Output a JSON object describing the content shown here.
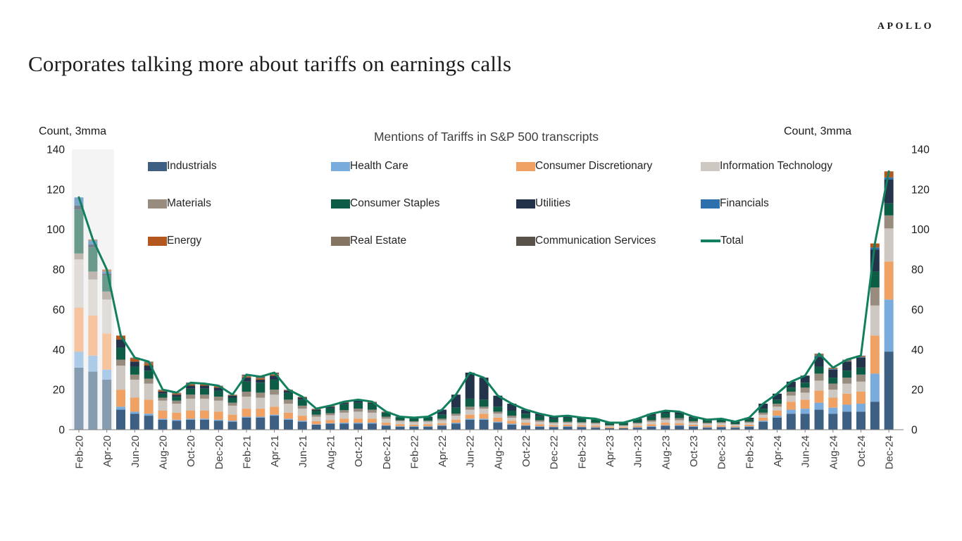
{
  "page": {
    "brand": "APOLLO",
    "title": "Corporates talking more about tariffs on earnings calls"
  },
  "chart": {
    "title": "Mentions of Tariffs in S&P 500 transcripts",
    "left_axis_unit": "Count, 3mma",
    "right_axis_unit": "Count, 3mma"
  },
  "chart_data": {
    "type": "bar",
    "subtype": "stacked-bars-with-total-line",
    "title": "Mentions of Tariffs in S&P 500 transcripts",
    "ylabel": "Count, 3mma",
    "ylim": [
      0,
      140
    ],
    "y_ticks": [
      0,
      20,
      40,
      60,
      80,
      100,
      120,
      140
    ],
    "grid": false,
    "legend_position": "top",
    "x_labels_shown_every": 2,
    "shaded_region": {
      "from": "Feb-20",
      "to": "Apr-20",
      "color": "#EDEDED",
      "overlay": "rgba(255,255,255,0.38)"
    },
    "categories": [
      "Feb-20",
      "Mar-20",
      "Apr-20",
      "May-20",
      "Jun-20",
      "Jul-20",
      "Aug-20",
      "Sep-20",
      "Oct-20",
      "Nov-20",
      "Dec-20",
      "Jan-21",
      "Feb-21",
      "Mar-21",
      "Apr-21",
      "May-21",
      "Jun-21",
      "Jul-21",
      "Aug-21",
      "Sep-21",
      "Oct-21",
      "Nov-21",
      "Dec-21",
      "Jan-22",
      "Feb-22",
      "Mar-22",
      "Apr-22",
      "May-22",
      "Jun-22",
      "Jul-22",
      "Aug-22",
      "Sep-22",
      "Oct-22",
      "Nov-22",
      "Dec-22",
      "Jan-23",
      "Feb-23",
      "Mar-23",
      "Apr-23",
      "May-23",
      "Jun-23",
      "Jul-23",
      "Aug-23",
      "Sep-23",
      "Oct-23",
      "Nov-23",
      "Dec-23",
      "Jan-24",
      "Feb-24",
      "Mar-24",
      "Apr-24",
      "May-24",
      "Jun-24",
      "Jul-24",
      "Aug-24",
      "Sep-24",
      "Oct-24",
      "Nov-24",
      "Dec-24"
    ],
    "series": [
      {
        "name": "Industrials",
        "color": "#3D5F82",
        "values": [
          31,
          29,
          25,
          10,
          8,
          7,
          5,
          4.5,
          5,
          5,
          4.5,
          4,
          6,
          6,
          7,
          5,
          4,
          2.5,
          3,
          3,
          3,
          3,
          2,
          1.5,
          1.5,
          1.5,
          2,
          3,
          5,
          5,
          3.5,
          2.5,
          2,
          1.5,
          1.25,
          1.5,
          1.25,
          1,
          0.75,
          0.75,
          1,
          1.5,
          2,
          2,
          1.5,
          1,
          1.25,
          1,
          1.5,
          4,
          6,
          8,
          8,
          10,
          8,
          9,
          9,
          14,
          39
        ]
      },
      {
        "name": "Health Care",
        "color": "#79ABDC",
        "values": [
          8,
          8,
          5,
          1.5,
          1,
          1,
          0.5,
          0.5,
          0.5,
          0.5,
          0.5,
          0.5,
          0.5,
          0.5,
          0.5,
          0.5,
          0.5,
          0.25,
          0.25,
          0.5,
          0.5,
          0.5,
          0.25,
          0.25,
          0.25,
          0.25,
          0.25,
          0.5,
          0.5,
          0.5,
          0.5,
          0.5,
          0.25,
          0.25,
          0.25,
          0.25,
          0.25,
          0.25,
          0,
          0,
          0.25,
          0.25,
          0.25,
          0.25,
          0.25,
          0.25,
          0.25,
          0.25,
          0.25,
          0.5,
          1,
          2,
          2.5,
          3.5,
          3,
          3.5,
          4,
          14,
          26
        ]
      },
      {
        "name": "Consumer Discretionary",
        "color": "#F0A164",
        "values": [
          22,
          20,
          18,
          8.5,
          7,
          7,
          4,
          3.5,
          4,
          4,
          4,
          3,
          4,
          4,
          4,
          3,
          2.5,
          1.5,
          1.5,
          2,
          2,
          2,
          1.25,
          1,
          0.75,
          1,
          1,
          1.5,
          2,
          2.5,
          2,
          1.5,
          1.25,
          1,
          0.75,
          0.75,
          0.75,
          0.75,
          0.5,
          0.5,
          0.75,
          1,
          1.25,
          1,
          0.75,
          0.75,
          0.75,
          0.5,
          0.75,
          1.5,
          2.5,
          4,
          4.5,
          6,
          5,
          5.5,
          6,
          19,
          19
        ]
      },
      {
        "name": "Information Technology",
        "color": "#CDC8C1",
        "values": [
          24,
          18,
          17,
          12,
          9,
          8,
          5,
          4.5,
          6,
          6,
          5.5,
          4.5,
          6,
          5.5,
          6,
          4.5,
          3.5,
          2.25,
          2.5,
          3,
          3.5,
          3,
          2,
          1.5,
          1.25,
          1.25,
          1.5,
          2,
          2.5,
          2.5,
          2,
          1.5,
          1.5,
          1.25,
          1,
          1,
          1,
          1,
          0.75,
          0.75,
          1,
          1.25,
          1.5,
          1.5,
          1,
          1,
          1,
          0.75,
          1,
          1.5,
          2,
          3,
          3.5,
          5,
          4,
          5,
          5,
          15,
          16.5
        ]
      },
      {
        "name": "Materials",
        "color": "#988C7F",
        "values": [
          3,
          4,
          4,
          3,
          2.5,
          2.5,
          1.5,
          1.5,
          2,
          2,
          2,
          1.5,
          2.5,
          2.5,
          2.5,
          2,
          1.5,
          1,
          1,
          1.25,
          1.5,
          1.5,
          1,
          0.5,
          0.5,
          0.5,
          0.75,
          1,
          1.5,
          1,
          1,
          1,
          0.75,
          0.75,
          0.5,
          0.5,
          0.5,
          0.5,
          0.25,
          0.25,
          0.5,
          0.75,
          1,
          1,
          0.75,
          0.5,
          0.5,
          0.25,
          0.5,
          1,
          1.5,
          2,
          2.5,
          3.5,
          3,
          3,
          3.5,
          9,
          6.5
        ]
      },
      {
        "name": "Consumer Staples",
        "color": "#0D5C46",
        "values": [
          22,
          12,
          8,
          6,
          4,
          4,
          2,
          2,
          3,
          3,
          3,
          2.5,
          5,
          5,
          5,
          3.5,
          3,
          2,
          2.5,
          3,
          3,
          3,
          2,
          1.5,
          1.5,
          1.5,
          2,
          3,
          4,
          3.5,
          2.5,
          2.5,
          2.25,
          2,
          1.75,
          2,
          1.5,
          1.5,
          1,
          1,
          1.5,
          2,
          2.25,
          2,
          1.5,
          1,
          1.25,
          0.75,
          1.25,
          2,
          2,
          2,
          2.5,
          3.5,
          3,
          3.5,
          3.5,
          8,
          6
        ]
      },
      {
        "name": "Utilities",
        "color": "#22334A",
        "values": [
          2,
          1.5,
          1,
          4,
          2.5,
          2.5,
          1,
          1,
          1.5,
          1.5,
          1.5,
          1,
          2,
          1.5,
          2,
          1,
          1,
          0.5,
          0.75,
          0.75,
          1,
          0.5,
          0.25,
          0.25,
          0.25,
          0.5,
          2.5,
          6.5,
          13,
          11,
          5.5,
          3.5,
          2,
          1.25,
          1,
          1,
          0.75,
          0.5,
          0.25,
          0.25,
          0.5,
          1,
          1,
          1,
          0.75,
          0.5,
          0.5,
          0.5,
          0.75,
          2.5,
          3,
          3,
          3.5,
          5,
          4,
          4.5,
          5,
          11,
          12
        ]
      },
      {
        "name": "Financials",
        "color": "#2E70AD",
        "values": [
          4,
          2,
          1,
          0,
          0,
          0,
          0,
          0,
          0,
          0,
          0,
          0,
          0,
          0,
          0,
          0,
          0,
          0,
          0,
          0,
          0,
          0,
          0,
          0,
          0,
          0,
          0,
          0,
          0,
          0,
          0,
          0,
          0,
          0,
          0,
          0,
          0,
          0,
          0,
          0,
          0,
          0,
          0,
          0,
          0,
          0,
          0,
          0,
          0,
          0,
          0,
          0,
          0,
          0.5,
          0.25,
          0.25,
          0.25,
          1,
          1
        ]
      },
      {
        "name": "Energy",
        "color": "#B4571E",
        "values": [
          0,
          0.5,
          1,
          2,
          1.5,
          1,
          0.5,
          0.5,
          0.5,
          0.5,
          0.5,
          0.25,
          0.5,
          0.5,
          0.5,
          0.25,
          0.25,
          0.25,
          0.25,
          0.25,
          0.25,
          0.25,
          0.25,
          0,
          0,
          0,
          0,
          0,
          0,
          0,
          0,
          0,
          0,
          0,
          0,
          0,
          0,
          0,
          0,
          0,
          0,
          0,
          0,
          0,
          0,
          0,
          0,
          0,
          0,
          0,
          0,
          0,
          0,
          0.5,
          0.25,
          0.25,
          0.25,
          2,
          3
        ]
      },
      {
        "name": "Real Estate",
        "color": "#867463",
        "values": [
          0,
          0,
          0,
          0,
          0.5,
          1,
          0.5,
          0.5,
          0.5,
          0.5,
          0.5,
          0.25,
          0.5,
          0.5,
          0.5,
          0.25,
          0.25,
          0.25,
          0.25,
          0.25,
          0.25,
          0.25,
          0,
          0,
          0,
          0,
          0,
          0,
          0,
          0,
          0,
          0,
          0,
          0,
          0,
          0,
          0,
          0,
          0,
          0,
          0,
          0.25,
          0.25,
          0.25,
          0,
          0,
          0,
          0,
          0,
          0,
          0,
          0,
          0,
          0.5,
          0.5,
          0.5,
          0.5,
          0,
          0
        ]
      },
      {
        "name": "Communication Services",
        "color": "#59524A",
        "values": [
          0,
          0,
          0,
          0,
          0,
          0,
          0,
          0,
          0.5,
          0,
          0,
          0,
          0.5,
          0.5,
          0.5,
          0,
          0,
          0,
          0,
          0,
          0,
          0,
          0,
          0,
          0,
          0,
          0,
          0,
          0,
          0,
          0,
          0,
          0,
          0,
          0,
          0,
          0,
          0,
          0,
          0,
          0,
          0,
          0,
          0,
          0,
          0,
          0,
          0,
          0,
          0,
          0,
          0,
          0,
          0,
          0,
          0,
          0,
          0,
          0
        ]
      }
    ],
    "total_line": {
      "name": "Total",
      "color": "#12805F",
      "values": [
        116,
        95,
        80,
        47,
        36,
        34,
        20,
        18.5,
        23.5,
        23,
        22,
        17.5,
        27.5,
        26.5,
        28.5,
        20,
        16.5,
        10.5,
        12,
        14,
        15,
        14,
        9,
        6.5,
        6,
        6.5,
        10,
        17.5,
        28.5,
        26,
        17,
        13,
        10,
        8,
        6.5,
        7,
        6,
        5.5,
        3.5,
        3.5,
        5.5,
        8,
        9.5,
        9,
        6.5,
        5,
        5.5,
        4,
        6,
        13,
        18,
        24,
        27,
        38,
        31,
        35,
        37,
        93,
        129
      ]
    }
  }
}
